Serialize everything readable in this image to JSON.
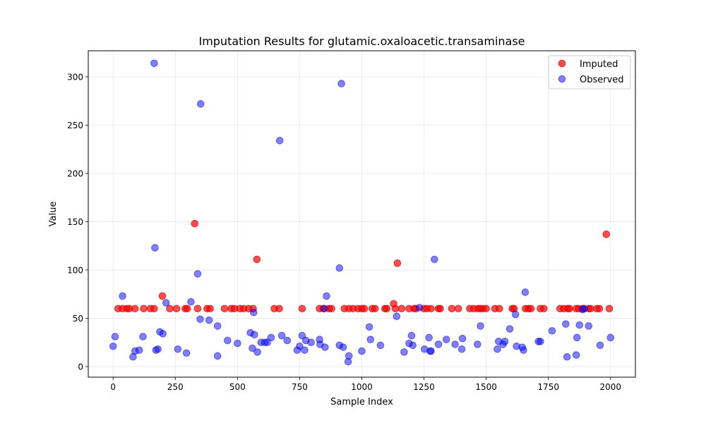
{
  "chart_data": {
    "type": "scatter",
    "title": "Imputation Results for glutamic.oxaloacetic.transaminase",
    "xlabel": "Sample Index",
    "ylabel": "Value",
    "xlim": [
      -100,
      2100
    ],
    "ylim": [
      -11,
      327
    ],
    "xticks": [
      0,
      250,
      500,
      750,
      1000,
      1250,
      1500,
      1750,
      2000
    ],
    "yticks": [
      0,
      50,
      100,
      150,
      200,
      250,
      300
    ],
    "grid": true,
    "legend_position": "top-right",
    "series": [
      {
        "name": "Imputed",
        "color": "#ff0000",
        "points": [
          [
            20,
            60
          ],
          [
            38,
            60
          ],
          [
            55,
            60
          ],
          [
            65,
            60
          ],
          [
            88,
            60
          ],
          [
            123,
            60
          ],
          [
            150,
            60
          ],
          [
            165,
            60
          ],
          [
            198,
            73
          ],
          [
            228,
            60
          ],
          [
            255,
            60
          ],
          [
            290,
            60
          ],
          [
            298,
            60
          ],
          [
            328,
            148
          ],
          [
            340,
            60
          ],
          [
            378,
            60
          ],
          [
            390,
            60
          ],
          [
            448,
            60
          ],
          [
            475,
            60
          ],
          [
            488,
            60
          ],
          [
            510,
            60
          ],
          [
            525,
            60
          ],
          [
            545,
            60
          ],
          [
            563,
            60
          ],
          [
            578,
            111
          ],
          [
            648,
            60
          ],
          [
            668,
            60
          ],
          [
            760,
            60
          ],
          [
            830,
            60
          ],
          [
            845,
            60
          ],
          [
            868,
            60
          ],
          [
            878,
            60
          ],
          [
            930,
            60
          ],
          [
            948,
            60
          ],
          [
            965,
            60
          ],
          [
            985,
            60
          ],
          [
            1000,
            60
          ],
          [
            1010,
            60
          ],
          [
            1042,
            60
          ],
          [
            1053,
            60
          ],
          [
            1093,
            60
          ],
          [
            1100,
            60
          ],
          [
            1128,
            65
          ],
          [
            1135,
            60
          ],
          [
            1143,
            107
          ],
          [
            1160,
            60
          ],
          [
            1190,
            60
          ],
          [
            1210,
            60
          ],
          [
            1218,
            60
          ],
          [
            1250,
            60
          ],
          [
            1262,
            60
          ],
          [
            1278,
            60
          ],
          [
            1308,
            60
          ],
          [
            1315,
            60
          ],
          [
            1362,
            60
          ],
          [
            1388,
            60
          ],
          [
            1434,
            60
          ],
          [
            1450,
            60
          ],
          [
            1467,
            60
          ],
          [
            1476,
            60
          ],
          [
            1487,
            60
          ],
          [
            1500,
            60
          ],
          [
            1535,
            60
          ],
          [
            1553,
            60
          ],
          [
            1605,
            60
          ],
          [
            1612,
            60
          ],
          [
            1658,
            60
          ],
          [
            1670,
            60
          ],
          [
            1680,
            60
          ],
          [
            1718,
            60
          ],
          [
            1732,
            60
          ],
          [
            1797,
            60
          ],
          [
            1812,
            60
          ],
          [
            1828,
            60
          ],
          [
            1835,
            60
          ],
          [
            1862,
            60
          ],
          [
            1872,
            60
          ],
          [
            1888,
            60
          ],
          [
            1912,
            60
          ],
          [
            1920,
            60
          ],
          [
            1945,
            60
          ],
          [
            1955,
            60
          ],
          [
            1983,
            137
          ],
          [
            1995,
            60
          ]
        ]
      },
      {
        "name": "Observed",
        "color": "#0000ff",
        "points": [
          [
            0,
            21
          ],
          [
            8,
            31
          ],
          [
            38,
            73
          ],
          [
            80,
            10
          ],
          [
            88,
            16
          ],
          [
            105,
            17
          ],
          [
            120,
            31
          ],
          [
            165,
            314
          ],
          [
            168,
            123
          ],
          [
            172,
            17
          ],
          [
            180,
            18
          ],
          [
            188,
            36
          ],
          [
            200,
            34
          ],
          [
            213,
            66
          ],
          [
            260,
            18
          ],
          [
            295,
            14
          ],
          [
            313,
            67
          ],
          [
            340,
            96
          ],
          [
            350,
            49
          ],
          [
            352,
            272
          ],
          [
            386,
            48
          ],
          [
            420,
            42
          ],
          [
            420,
            11
          ],
          [
            460,
            27
          ],
          [
            500,
            24
          ],
          [
            552,
            35
          ],
          [
            560,
            19
          ],
          [
            565,
            56
          ],
          [
            568,
            33
          ],
          [
            580,
            15
          ],
          [
            595,
            25
          ],
          [
            610,
            25
          ],
          [
            620,
            25
          ],
          [
            635,
            30
          ],
          [
            670,
            234
          ],
          [
            678,
            32
          ],
          [
            700,
            27
          ],
          [
            740,
            17
          ],
          [
            750,
            21
          ],
          [
            760,
            32
          ],
          [
            770,
            17
          ],
          [
            775,
            27
          ],
          [
            796,
            25
          ],
          [
            830,
            28
          ],
          [
            832,
            23
          ],
          [
            850,
            60
          ],
          [
            852,
            20
          ],
          [
            858,
            73
          ],
          [
            910,
            22
          ],
          [
            910,
            102
          ],
          [
            918,
            293
          ],
          [
            925,
            20
          ],
          [
            945,
            5
          ],
          [
            948,
            11
          ],
          [
            1000,
            16
          ],
          [
            1030,
            41
          ],
          [
            1035,
            28
          ],
          [
            1075,
            22
          ],
          [
            1140,
            52
          ],
          [
            1170,
            15
          ],
          [
            1190,
            24
          ],
          [
            1200,
            32
          ],
          [
            1205,
            22
          ],
          [
            1232,
            61
          ],
          [
            1252,
            18
          ],
          [
            1270,
            30
          ],
          [
            1275,
            16
          ],
          [
            1278,
            16
          ],
          [
            1292,
            111
          ],
          [
            1308,
            23
          ],
          [
            1340,
            28
          ],
          [
            1375,
            23
          ],
          [
            1402,
            18
          ],
          [
            1405,
            29
          ],
          [
            1465,
            23
          ],
          [
            1477,
            42
          ],
          [
            1545,
            18
          ],
          [
            1550,
            26
          ],
          [
            1568,
            23
          ],
          [
            1575,
            26
          ],
          [
            1595,
            39
          ],
          [
            1618,
            54
          ],
          [
            1622,
            21
          ],
          [
            1645,
            20
          ],
          [
            1650,
            17
          ],
          [
            1657,
            77
          ],
          [
            1710,
            26
          ],
          [
            1718,
            26
          ],
          [
            1765,
            37
          ],
          [
            1820,
            44
          ],
          [
            1825,
            10
          ],
          [
            1862,
            12
          ],
          [
            1865,
            30
          ],
          [
            1875,
            43
          ],
          [
            1888,
            59
          ],
          [
            1895,
            60
          ],
          [
            1912,
            42
          ],
          [
            1958,
            22
          ],
          [
            2000,
            30
          ]
        ]
      }
    ]
  }
}
